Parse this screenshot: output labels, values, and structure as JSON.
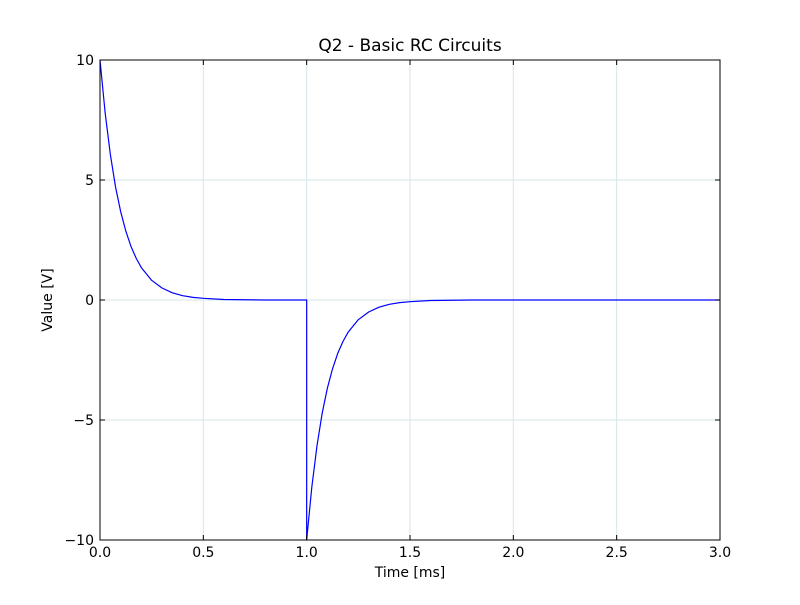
{
  "chart_data": {
    "type": "line",
    "title": "Q2 - Basic RC Circuits",
    "xlabel": "Time  [ms]",
    "ylabel": "Value [V]",
    "xlim": [
      0.0,
      3.0
    ],
    "ylim": [
      -10,
      10
    ],
    "grid": true,
    "x_ticks": [
      0.0,
      0.5,
      1.0,
      1.5,
      2.0,
      2.5,
      3.0
    ],
    "x_tick_labels": [
      "0.0",
      "0.5",
      "1.0",
      "1.5",
      "2.0",
      "2.5",
      "3.0"
    ],
    "y_ticks": [
      -10,
      -5,
      0,
      5,
      10
    ],
    "y_tick_labels": [
      "−10",
      "−5",
      "0",
      "5",
      "10"
    ],
    "series": [
      {
        "color": "#0000ff",
        "x": [
          0.0,
          0.025,
          0.05,
          0.075,
          0.1,
          0.125,
          0.15,
          0.175,
          0.2,
          0.25,
          0.3,
          0.35,
          0.4,
          0.45,
          0.5,
          0.6,
          0.7,
          0.8,
          0.9,
          1.0,
          1.0,
          1.025,
          1.05,
          1.075,
          1.1,
          1.125,
          1.15,
          1.175,
          1.2,
          1.25,
          1.3,
          1.35,
          1.4,
          1.45,
          1.5,
          1.6,
          1.7,
          1.8,
          2.0,
          2.5,
          3.0
        ],
        "y": [
          10.0,
          7.79,
          6.07,
          4.72,
          3.68,
          2.87,
          2.23,
          1.74,
          1.35,
          0.82,
          0.5,
          0.3,
          0.18,
          0.11,
          0.07,
          0.02,
          0.01,
          0.0,
          0.0,
          0.0,
          -10.0,
          -7.79,
          -6.07,
          -4.72,
          -3.68,
          -2.87,
          -2.23,
          -1.74,
          -1.35,
          -0.82,
          -0.5,
          -0.3,
          -0.18,
          -0.11,
          -0.07,
          -0.02,
          -0.01,
          0.0,
          0.0,
          0.0,
          0.0
        ]
      }
    ]
  }
}
